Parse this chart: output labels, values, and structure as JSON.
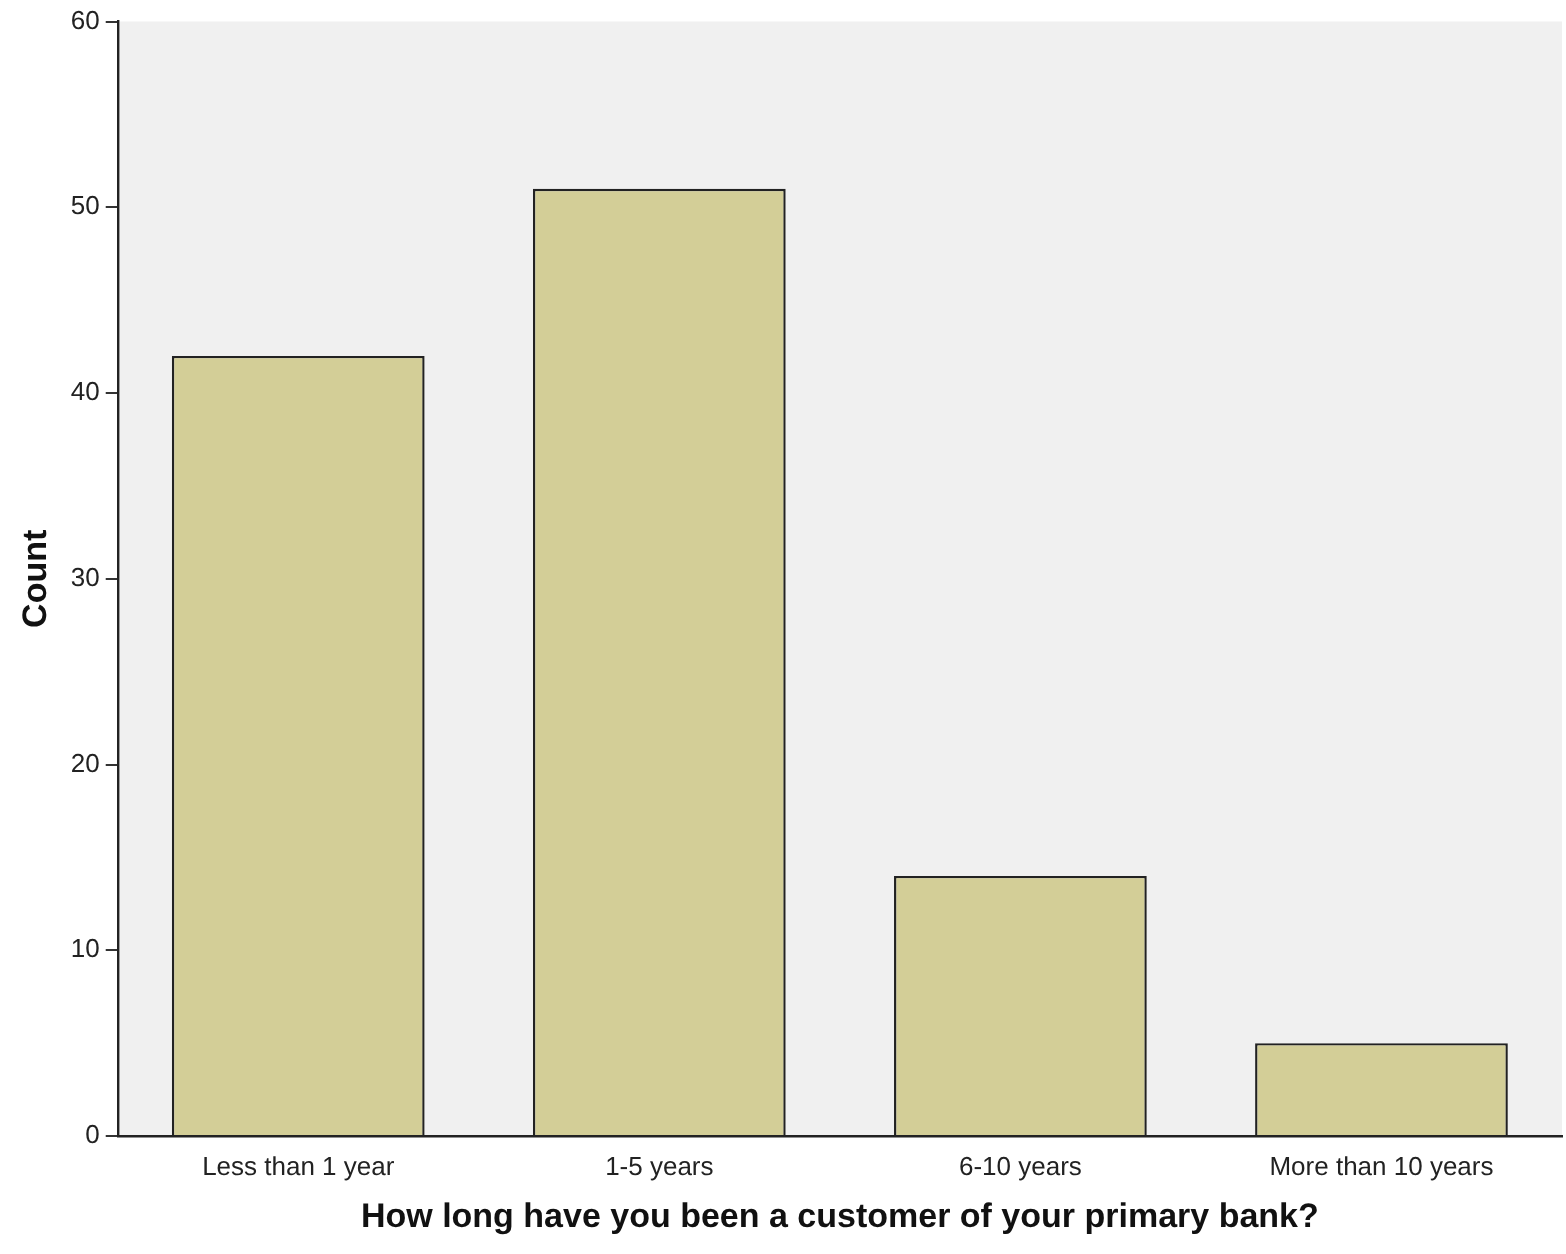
{
  "chart_data": {
    "type": "bar",
    "xlabel": "How long have you been a customer of your primary bank?",
    "ylabel": "Count",
    "categories": [
      "Less than 1 year",
      "1-5 years",
      "6-10 years",
      "More than 10 years"
    ],
    "values": [
      42,
      51,
      14,
      5
    ],
    "color": "#d3ce97",
    "ylim": [
      0,
      60
    ],
    "yticks": [
      0,
      10,
      20,
      30,
      40,
      50,
      60
    ],
    "grid": false,
    "legend": false
  }
}
